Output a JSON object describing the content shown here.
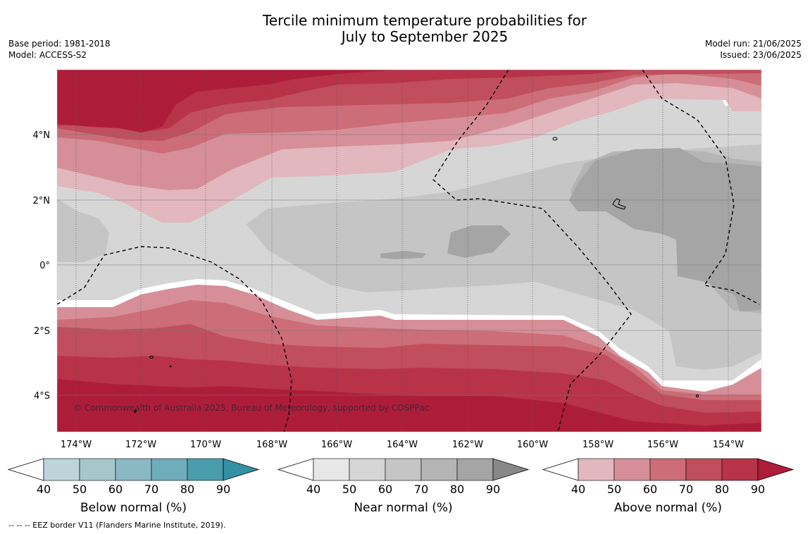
{
  "title": {
    "line1": "Tercile minimum temperature probabilities for",
    "line2": "July to September 2025"
  },
  "meta_left": {
    "base_period": "Base period: 1981-2018",
    "model": "Model: ACCESS-S2"
  },
  "meta_right": {
    "model_run": "Model run: 21/06/2025",
    "issued": "Issued: 23/06/2025"
  },
  "map": {
    "lat_labels": [
      "4°N",
      "2°N",
      "0°",
      "2°S",
      "4°S"
    ],
    "lon_labels": [
      "174°W",
      "172°W",
      "170°W",
      "168°W",
      "166°W",
      "164°W",
      "162°W",
      "160°W",
      "158°W",
      "156°W",
      "154°W"
    ],
    "copyright": "© Commonwealth of Australia 2025, Bureau of Meteorology, supported by COSPPac"
  },
  "colorbars": [
    {
      "label": "Below normal (%)",
      "ticks": [
        "40",
        "50",
        "60",
        "70",
        "80",
        "90"
      ],
      "colors": [
        "#bdd4da",
        "#a5c7cc",
        "#8ab8c3",
        "#6eadb9",
        "#4a9dad",
        "#3491a3"
      ]
    },
    {
      "label": "Near normal (%)",
      "ticks": [
        "40",
        "50",
        "60",
        "70",
        "80",
        "90"
      ],
      "colors": [
        "#e7e7e7",
        "#d6d6d6",
        "#c5c5c5",
        "#b5b5b5",
        "#a5a5a5",
        "#888888"
      ]
    },
    {
      "label": "Above normal (%)",
      "ticks": [
        "40",
        "50",
        "60",
        "70",
        "80",
        "90"
      ],
      "colors": [
        "#e2b7be",
        "#d68f98",
        "#cc6d78",
        "#c04e5c",
        "#b83248",
        "#ad1d3a"
      ]
    }
  ],
  "footnote": "--  --  -- EEZ border V11 (Flanders Marine Institute, 2019).",
  "colors": {
    "above_90": "#ad1d3a",
    "near_80": "#a5a5a5"
  }
}
